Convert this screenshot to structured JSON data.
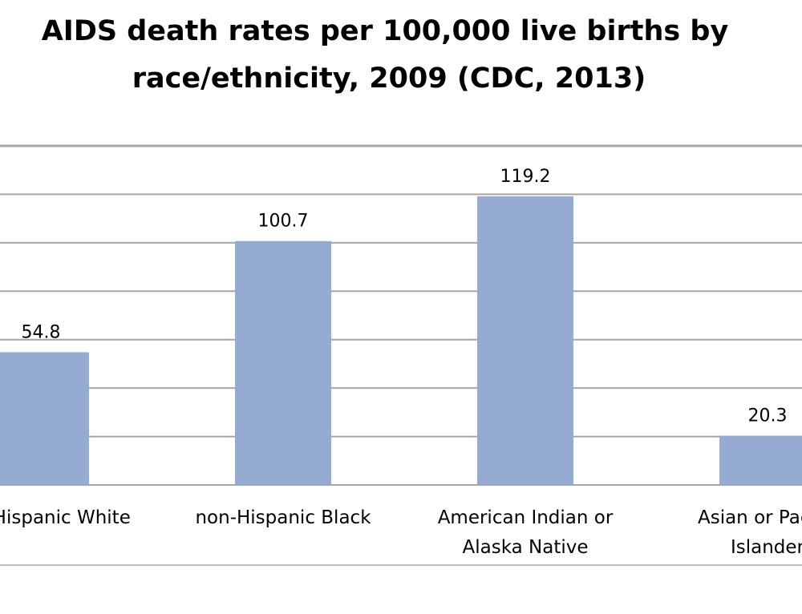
{
  "chart_data": {
    "type": "bar",
    "title_lines": [
      "AIDS death rates per 100,000 live births by",
      "race/ethnicity, 2009 (CDC, 2013)"
    ],
    "categories": [
      [
        "non-Hispanic White"
      ],
      [
        "non-Hispanic Black"
      ],
      [
        "American Indian or",
        "Alaska Native"
      ],
      [
        "Asian or Pacific",
        "Islander"
      ]
    ],
    "values": [
      54.8,
      100.7,
      119.2,
      20.3
    ],
    "value_labels": [
      "54.8",
      "100.7",
      "119.2",
      "20.3"
    ],
    "ylim": [
      0,
      140
    ],
    "ytick_step": 20,
    "grid": true,
    "bar_color": "#95abd1",
    "grid_color": "#a6a6a6"
  }
}
